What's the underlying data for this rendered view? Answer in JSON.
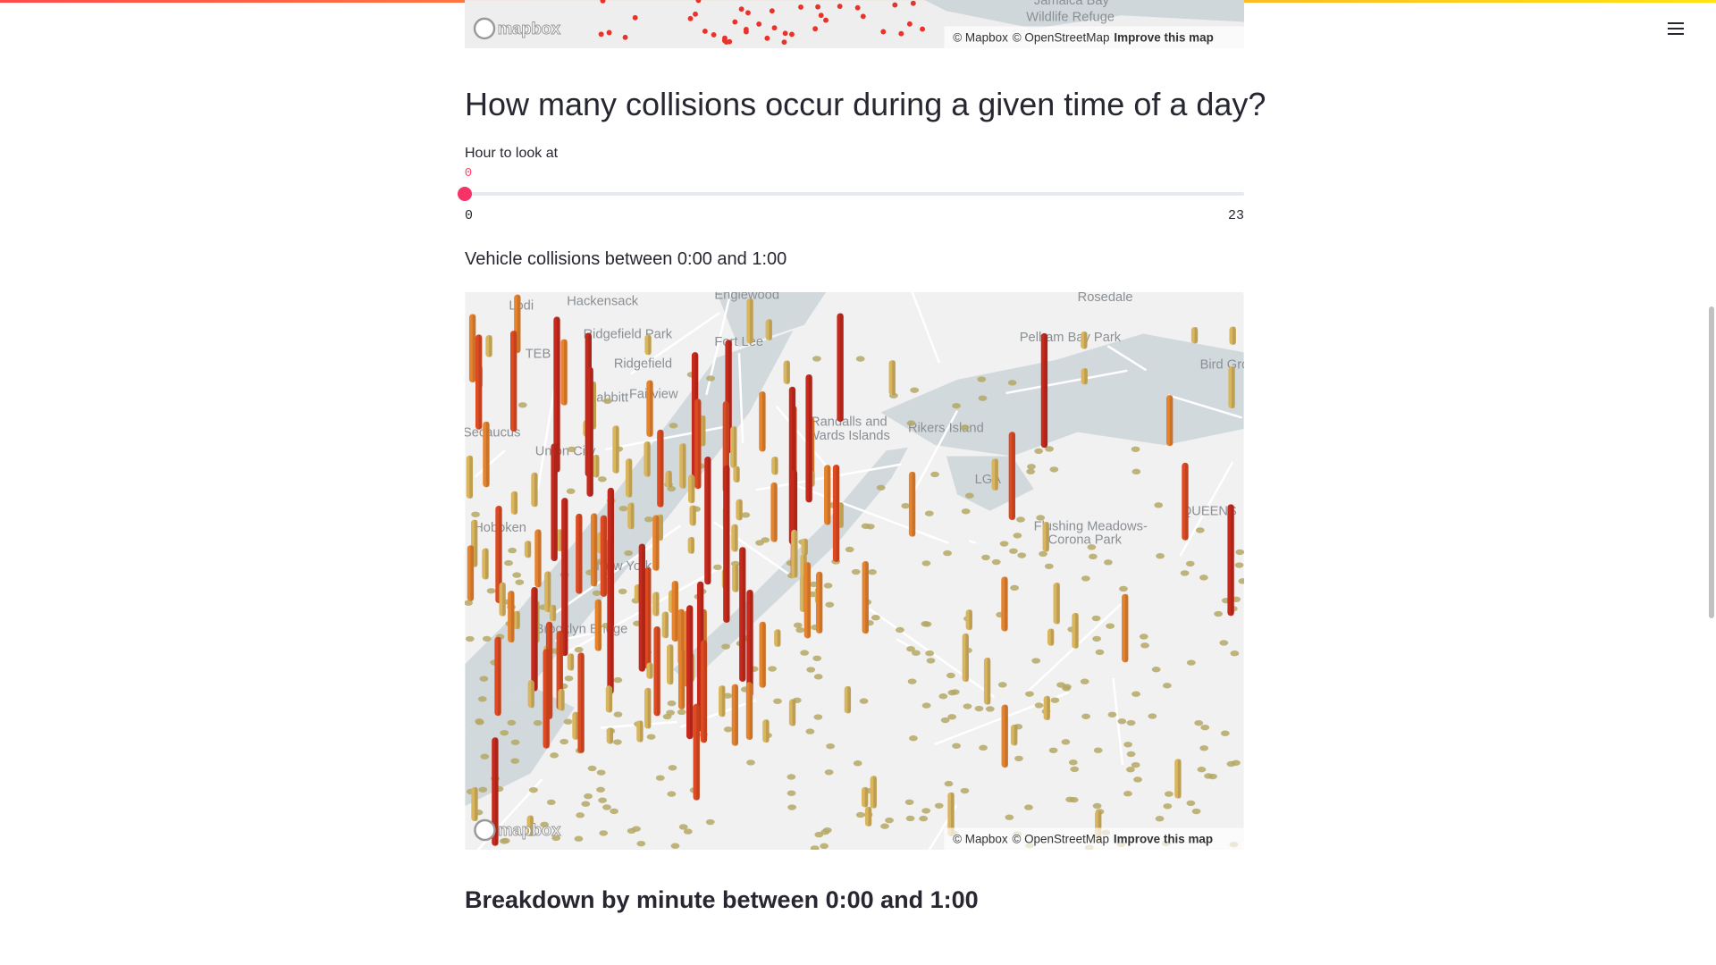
{
  "top_map": {
    "labels": [
      "Jamaica Bay",
      "Wildlife Refuge"
    ],
    "logo": "mapbox",
    "attribution": {
      "mapbox": "© Mapbox",
      "osm": "© OpenStreetMap",
      "improve": "Improve this map"
    }
  },
  "heading": "How many collisions occur during a given time of a day?",
  "slider": {
    "label": "Hour to look at",
    "value": 0,
    "min": 0,
    "max": 23
  },
  "map_caption": "Vehicle collisions between 0:00 and 1:00",
  "map": {
    "labels": [
      "Englewood",
      "Lodi",
      "Hackensack",
      "Ridgefield Park",
      "Fort Lee",
      "TEB",
      "Ridgefield",
      "Babbitt",
      "Fairview",
      "Secaucus",
      "Union City",
      "Hoboken",
      "New York",
      "Randalls and",
      "Wards Islands",
      "Rikers Island",
      "LGA",
      "Pelham Bay Park",
      "QUEENS",
      "Flushing Meadows-",
      "Corona Park",
      "Brooklyn Bridge",
      "Rosedale",
      "Bird Grove"
    ],
    "logo": "mapbox",
    "attribution": {
      "mapbox": "© Mapbox",
      "osm": "© OpenStreetMap",
      "improve": "Improve this map"
    }
  },
  "subheading": "Breakdown by minute between 0:00 and 1:00"
}
